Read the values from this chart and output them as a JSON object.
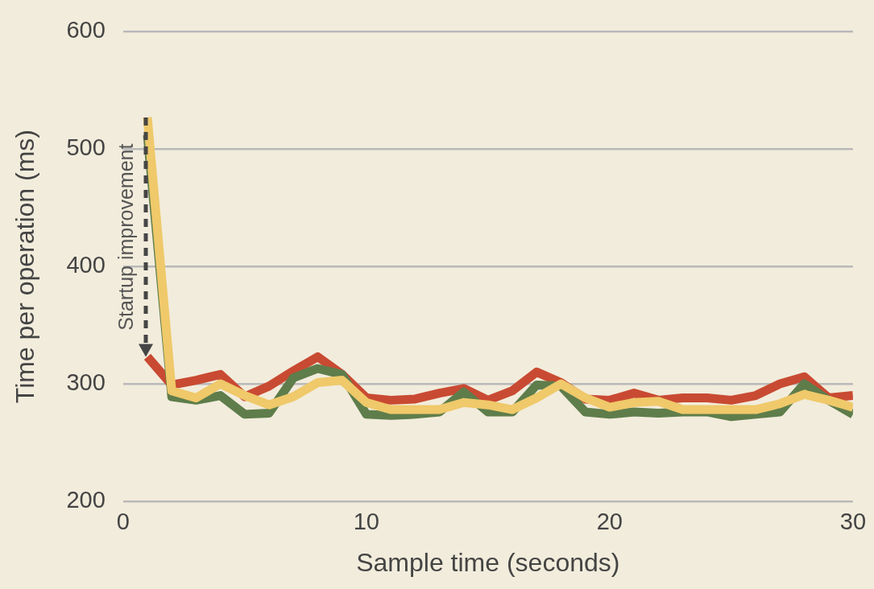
{
  "chart_data": {
    "type": "line",
    "xlabel": "Sample time (seconds)",
    "ylabel": "Time per operation (ms)",
    "x": [
      1,
      2,
      3,
      4,
      5,
      6,
      7,
      8,
      9,
      10,
      11,
      12,
      13,
      14,
      15,
      16,
      17,
      18,
      19,
      20,
      21,
      22,
      23,
      24,
      25,
      26,
      27,
      28,
      29,
      30
    ],
    "series": [
      {
        "color": "#c94a32",
        "values": [
          323,
          299,
          303,
          308,
          289,
          298,
          311,
          323,
          308,
          288,
          286,
          287,
          292,
          296,
          286,
          294,
          310,
          301,
          287,
          286,
          292,
          286,
          288,
          288,
          286,
          290,
          300,
          306,
          288,
          290
        ]
      },
      {
        "color": "#5e7d4b",
        "values": [
          512,
          289,
          286,
          290,
          274,
          275,
          305,
          313,
          308,
          274,
          273,
          274,
          276,
          293,
          276,
          276,
          299,
          298,
          276,
          274,
          276,
          275,
          276,
          276,
          272,
          274,
          276,
          300,
          286,
          274
        ]
      },
      {
        "color": "#efc96a",
        "values": [
          527,
          294,
          288,
          300,
          290,
          282,
          289,
          301,
          303,
          284,
          278,
          278,
          278,
          284,
          282,
          278,
          288,
          300,
          288,
          280,
          284,
          285,
          278,
          278,
          278,
          278,
          283,
          291,
          286,
          280
        ]
      }
    ],
    "xlim": [
      0,
      30
    ],
    "xticks": [
      0,
      10,
      20,
      30
    ],
    "ylim": [
      200,
      600
    ],
    "yticks": [
      200,
      300,
      400,
      500,
      600
    ],
    "grid": "y",
    "legend": false,
    "marker": "none",
    "line_style": "solid",
    "annotations": [
      "Startup improvement"
    ]
  }
}
